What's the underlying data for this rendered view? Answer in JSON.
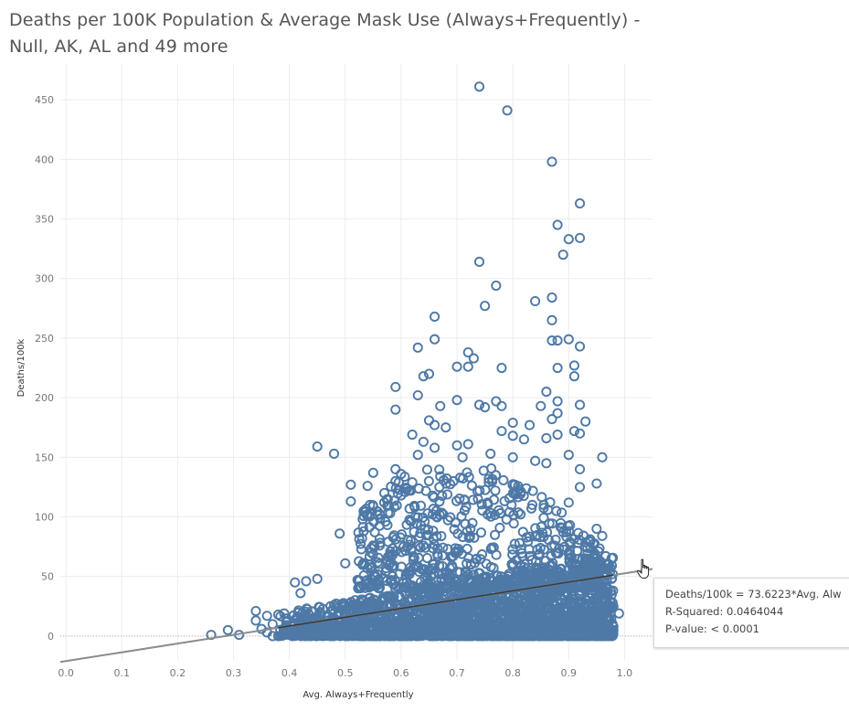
{
  "title": "Deaths per 100K Population & Average Mask Use (Always+Frequently) - Null, AK, AL and 49 more",
  "tooltip": {
    "equation": "Deaths/100k = 73.6223*Avg. Alw",
    "r_squared": "R-Squared: 0.0464044",
    "p_value": "P-value: < 0.0001"
  },
  "colors": {
    "marker": "#4e79a7",
    "trend": "#8c8c8c",
    "trend_dark": "#3a3a3a",
    "grid": "#ececec"
  },
  "chart_data": {
    "type": "scatter",
    "title": "Deaths per 100K Population & Average Mask Use (Always+Frequently) - Null, AK, AL and 49 more",
    "xlabel": "Avg. Always+Frequently",
    "ylabel": "Deaths/100k",
    "xlim": [
      -0.01,
      1.05
    ],
    "ylim": [
      -20,
      480
    ],
    "x_ticks": [
      "0.0",
      "0.1",
      "0.2",
      "0.3",
      "0.4",
      "0.5",
      "0.6",
      "0.7",
      "0.8",
      "0.9",
      "1.0"
    ],
    "y_ticks": [
      "0",
      "50",
      "100",
      "150",
      "200",
      "250",
      "300",
      "350",
      "400",
      "450"
    ],
    "grid": true,
    "marker": "open-circle",
    "trend_line": {
      "slope": 73.6223,
      "intercept": -21,
      "r_squared": 0.0464044,
      "p_value": "< 0.0001"
    },
    "points": [
      {
        "x": 0.74,
        "y": 461
      },
      {
        "x": 0.79,
        "y": 441
      },
      {
        "x": 0.87,
        "y": 398
      },
      {
        "x": 0.92,
        "y": 363
      },
      {
        "x": 0.88,
        "y": 345
      },
      {
        "x": 0.9,
        "y": 333
      },
      {
        "x": 0.92,
        "y": 334
      },
      {
        "x": 0.89,
        "y": 320
      },
      {
        "x": 0.74,
        "y": 314
      },
      {
        "x": 0.77,
        "y": 294
      },
      {
        "x": 0.84,
        "y": 281
      },
      {
        "x": 0.87,
        "y": 284
      },
      {
        "x": 0.75,
        "y": 277
      },
      {
        "x": 0.66,
        "y": 268
      },
      {
        "x": 0.87,
        "y": 265
      },
      {
        "x": 0.66,
        "y": 249
      },
      {
        "x": 0.87,
        "y": 248
      },
      {
        "x": 0.88,
        "y": 248
      },
      {
        "x": 0.9,
        "y": 249
      },
      {
        "x": 0.92,
        "y": 243
      },
      {
        "x": 0.63,
        "y": 242
      },
      {
        "x": 0.72,
        "y": 238
      },
      {
        "x": 0.73,
        "y": 233
      },
      {
        "x": 0.7,
        "y": 226
      },
      {
        "x": 0.72,
        "y": 226
      },
      {
        "x": 0.78,
        "y": 225
      },
      {
        "x": 0.88,
        "y": 225
      },
      {
        "x": 0.91,
        "y": 227
      },
      {
        "x": 0.65,
        "y": 220
      },
      {
        "x": 0.64,
        "y": 218
      },
      {
        "x": 0.59,
        "y": 209
      },
      {
        "x": 0.63,
        "y": 202
      },
      {
        "x": 0.86,
        "y": 205
      },
      {
        "x": 0.91,
        "y": 218
      },
      {
        "x": 0.7,
        "y": 198
      },
      {
        "x": 0.74,
        "y": 194
      },
      {
        "x": 0.75,
        "y": 192
      },
      {
        "x": 0.77,
        "y": 197
      },
      {
        "x": 0.78,
        "y": 193
      },
      {
        "x": 0.85,
        "y": 193
      },
      {
        "x": 0.88,
        "y": 197
      },
      {
        "x": 0.92,
        "y": 194
      },
      {
        "x": 0.59,
        "y": 190
      },
      {
        "x": 0.67,
        "y": 193
      },
      {
        "x": 0.88,
        "y": 187
      },
      {
        "x": 0.65,
        "y": 181
      },
      {
        "x": 0.66,
        "y": 177
      },
      {
        "x": 0.68,
        "y": 175
      },
      {
        "x": 0.8,
        "y": 179
      },
      {
        "x": 0.83,
        "y": 177
      },
      {
        "x": 0.87,
        "y": 182
      },
      {
        "x": 0.93,
        "y": 180
      },
      {
        "x": 0.62,
        "y": 169
      },
      {
        "x": 0.64,
        "y": 163
      },
      {
        "x": 0.66,
        "y": 158
      },
      {
        "x": 0.7,
        "y": 160
      },
      {
        "x": 0.72,
        "y": 161
      },
      {
        "x": 0.78,
        "y": 172
      },
      {
        "x": 0.8,
        "y": 168
      },
      {
        "x": 0.82,
        "y": 165
      },
      {
        "x": 0.86,
        "y": 166
      },
      {
        "x": 0.88,
        "y": 169
      },
      {
        "x": 0.91,
        "y": 172
      },
      {
        "x": 0.92,
        "y": 170
      },
      {
        "x": 0.45,
        "y": 159
      },
      {
        "x": 0.48,
        "y": 153
      },
      {
        "x": 0.63,
        "y": 152
      },
      {
        "x": 0.71,
        "y": 150
      },
      {
        "x": 0.76,
        "y": 153
      },
      {
        "x": 0.8,
        "y": 150
      },
      {
        "x": 0.84,
        "y": 147
      },
      {
        "x": 0.86,
        "y": 145
      },
      {
        "x": 0.9,
        "y": 152
      },
      {
        "x": 0.96,
        "y": 150
      },
      {
        "x": 0.92,
        "y": 140
      },
      {
        "x": 0.59,
        "y": 140
      },
      {
        "x": 0.6,
        "y": 136
      },
      {
        "x": 0.67,
        "y": 134
      },
      {
        "x": 0.55,
        "y": 137
      },
      {
        "x": 0.59,
        "y": 130
      },
      {
        "x": 0.62,
        "y": 129
      },
      {
        "x": 0.51,
        "y": 127
      },
      {
        "x": 0.54,
        "y": 126
      },
      {
        "x": 0.57,
        "y": 120
      },
      {
        "x": 0.92,
        "y": 125
      },
      {
        "x": 0.95,
        "y": 128
      },
      {
        "x": 0.51,
        "y": 113
      },
      {
        "x": 0.55,
        "y": 109
      },
      {
        "x": 0.6,
        "y": 118
      },
      {
        "x": 0.9,
        "y": 112
      },
      {
        "x": 0.49,
        "y": 86
      },
      {
        "x": 0.55,
        "y": 76
      },
      {
        "x": 0.96,
        "y": 84
      },
      {
        "x": 0.95,
        "y": 90
      },
      {
        "x": 0.5,
        "y": 61
      },
      {
        "x": 0.45,
        "y": 48
      },
      {
        "x": 0.41,
        "y": 45
      },
      {
        "x": 0.43,
        "y": 46
      },
      {
        "x": 0.97,
        "y": 40
      },
      {
        "x": 0.42,
        "y": 36
      },
      {
        "x": 0.34,
        "y": 21
      },
      {
        "x": 0.38,
        "y": 18
      },
      {
        "x": 0.36,
        "y": 17
      },
      {
        "x": 0.34,
        "y": 13
      },
      {
        "x": 0.37,
        "y": 10
      },
      {
        "x": 0.35,
        "y": 6
      },
      {
        "x": 0.36,
        "y": 3
      },
      {
        "x": 0.29,
        "y": 5
      },
      {
        "x": 0.26,
        "y": 1
      },
      {
        "x": 0.31,
        "y": 1
      },
      {
        "x": 0.37,
        "y": 0
      },
      {
        "x": 0.38,
        "y": 0
      },
      {
        "x": 0.99,
        "y": 19
      },
      {
        "x": 0.98,
        "y": 25
      },
      {
        "x": 0.98,
        "y": 8
      },
      {
        "x": 0.98,
        "y": 5
      }
    ],
    "dense_cluster": {
      "x_range": [
        0.38,
        0.98
      ],
      "y_base": 0,
      "y_spread": 55,
      "count": 2600,
      "seed": 42
    }
  }
}
